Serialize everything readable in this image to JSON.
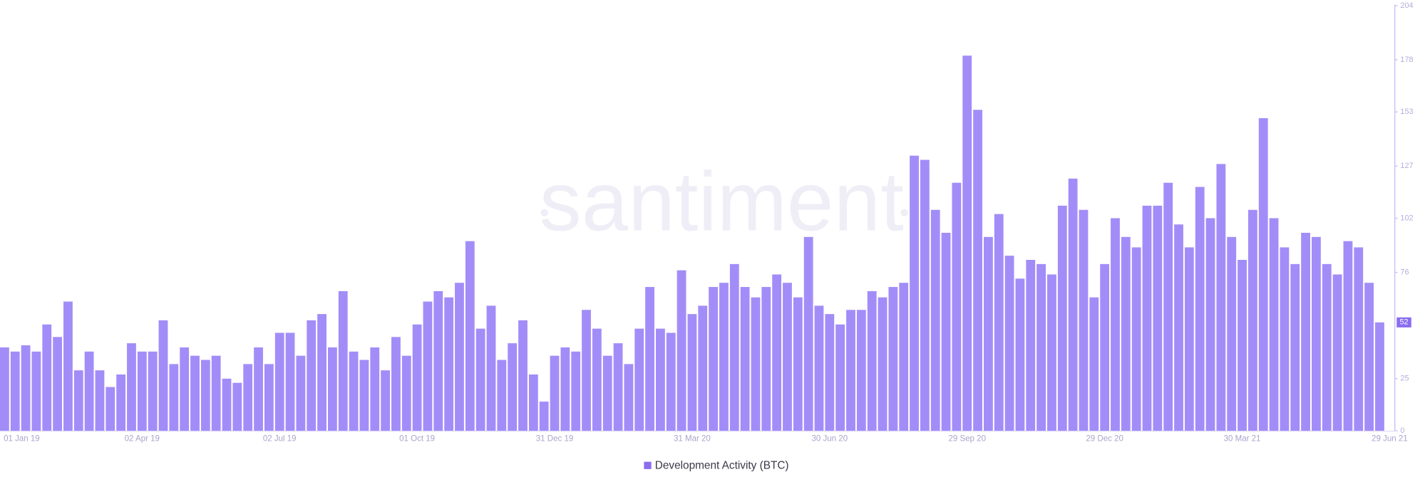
{
  "chart_data": {
    "type": "bar",
    "watermark": "santiment",
    "categories": [
      "01 Jan 19",
      null,
      null,
      null,
      null,
      null,
      null,
      null,
      null,
      null,
      null,
      null,
      null,
      "02 Apr 19",
      null,
      null,
      null,
      null,
      null,
      null,
      null,
      null,
      null,
      null,
      null,
      null,
      "02 Jul 19",
      null,
      null,
      null,
      null,
      null,
      null,
      null,
      null,
      null,
      null,
      null,
      null,
      "01 Oct 19",
      null,
      null,
      null,
      null,
      null,
      null,
      null,
      null,
      null,
      null,
      null,
      null,
      "31 Dec 19",
      null,
      null,
      null,
      null,
      null,
      null,
      null,
      null,
      null,
      null,
      null,
      null,
      "31 Mar 20",
      null,
      null,
      null,
      null,
      null,
      null,
      null,
      null,
      null,
      null,
      null,
      null,
      "30 Jun 20",
      null,
      null,
      null,
      null,
      null,
      null,
      null,
      null,
      null,
      null,
      null,
      null,
      "29 Sep 20",
      null,
      null,
      null,
      null,
      null,
      null,
      null,
      null,
      null,
      null,
      null,
      null,
      "29 Dec 20",
      null,
      null,
      null,
      null,
      null,
      null,
      null,
      null,
      null,
      null,
      null,
      null,
      "30 Mar 21",
      null,
      null,
      null,
      null,
      null,
      null,
      null,
      null,
      null,
      null,
      null,
      null,
      "29 Jun 21"
    ],
    "series": [
      {
        "name": "Development Activity (BTC)",
        "color": "#a28df8",
        "values": [
          40,
          38,
          41,
          38,
          51,
          45,
          62,
          29,
          38,
          29,
          21,
          27,
          42,
          38,
          38,
          53,
          32,
          40,
          36,
          34,
          36,
          25,
          23,
          32,
          40,
          32,
          47,
          47,
          36,
          53,
          56,
          40,
          67,
          38,
          34,
          40,
          29,
          45,
          36,
          51,
          62,
          67,
          64,
          71,
          91,
          49,
          60,
          34,
          42,
          53,
          27,
          14,
          36,
          40,
          38,
          58,
          49,
          36,
          42,
          32,
          49,
          69,
          49,
          47,
          77,
          56,
          60,
          69,
          71,
          80,
          69,
          64,
          69,
          75,
          71,
          64,
          93,
          60,
          56,
          51,
          58,
          58,
          67,
          64,
          69,
          71,
          132,
          130,
          106,
          95,
          119,
          180,
          154,
          93,
          104,
          84,
          73,
          82,
          80,
          75,
          108,
          121,
          106,
          64,
          80,
          102,
          93,
          88,
          108,
          108,
          119,
          99,
          88,
          117,
          102,
          128,
          93,
          82,
          106,
          150,
          102,
          88,
          80,
          95,
          93,
          80,
          75,
          91,
          88,
          71,
          52
        ]
      }
    ],
    "ylim": [
      0,
      204
    ],
    "yticks": [
      0,
      25,
      76,
      102,
      127,
      153,
      178,
      204
    ],
    "legend": "bottom"
  }
}
